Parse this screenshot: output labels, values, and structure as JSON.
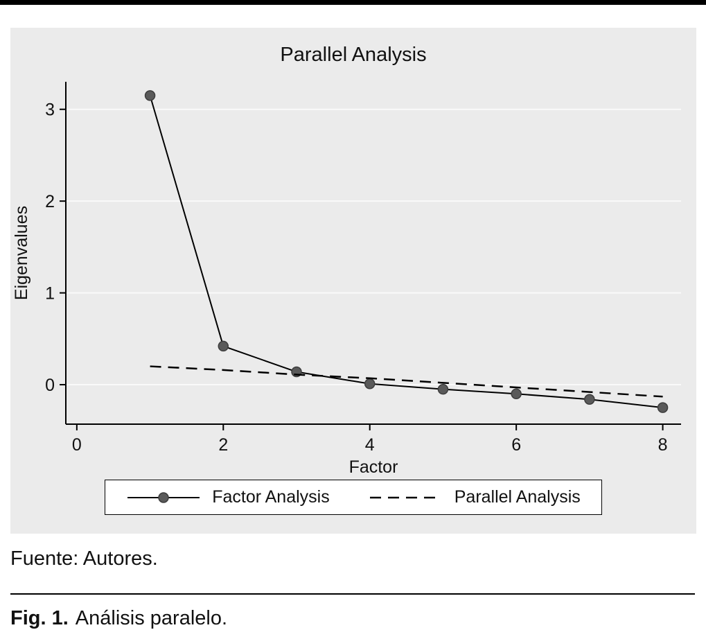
{
  "figure": {
    "source_note": "Fuente: Autores.",
    "caption_label": "Fig. 1.",
    "caption_text": "Análisis paralelo."
  },
  "chart_data": {
    "type": "line",
    "title": "Parallel Analysis",
    "xlabel": "Factor",
    "ylabel": "Eigenvalues",
    "x": [
      1,
      2,
      3,
      4,
      5,
      6,
      7,
      8
    ],
    "series": [
      {
        "name": "Factor Analysis",
        "style": "solid-marker",
        "values": [
          3.15,
          0.42,
          0.14,
          0.01,
          -0.05,
          -0.1,
          -0.16,
          -0.25
        ]
      },
      {
        "name": "Parallel Analysis",
        "style": "dashed",
        "values": [
          0.2,
          0.16,
          0.11,
          0.07,
          0.02,
          -0.03,
          -0.08,
          -0.13
        ]
      }
    ],
    "xticks": [
      0,
      2,
      4,
      6,
      8
    ],
    "yticks": [
      0,
      1,
      2,
      3
    ],
    "xlim": [
      -0.15,
      8.25
    ],
    "ylim": [
      -0.43,
      3.3
    ],
    "grid": true,
    "legend_position": "bottom",
    "colors": {
      "line": "#000000",
      "marker_fill": "#5a5a5a",
      "marker_edge": "#3d3d3d",
      "plot_bg": "#ebebeb",
      "grid": "#fafafa",
      "axis": "#000000",
      "legend_bg": "#ffffff"
    }
  }
}
